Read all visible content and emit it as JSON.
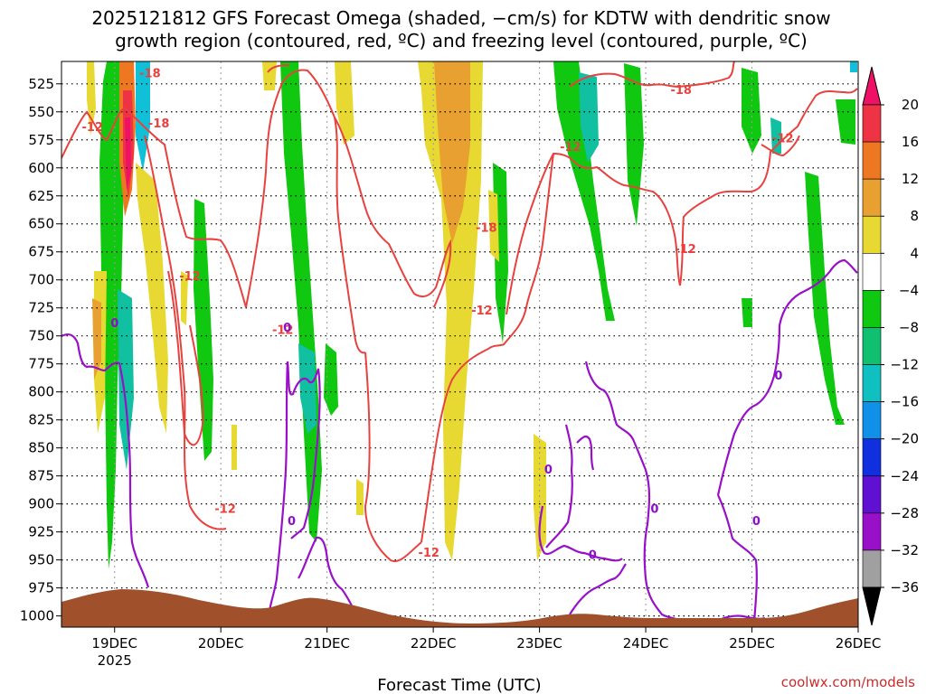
{
  "chart_data": {
    "type": "heatmap",
    "title_line1": "2025121812 GFS Forecast Omega (shaded, −cm/s) for KDTW with dendritic snow",
    "title_line2": "growth region (contoured, red, ºC) and freezing level (contoured, purple, ºC)",
    "xlabel": "Forecast Time (UTC)",
    "ylabel": "",
    "credit": "coolwx.com/models",
    "x_ticks": [
      "19DEC",
      "20DEC",
      "21DEC",
      "22DEC",
      "23DEC",
      "24DEC",
      "25DEC",
      "26DEC"
    ],
    "x_tick_hours": [
      12,
      36,
      60,
      84,
      108,
      132,
      156,
      180
    ],
    "x_year_label": "2025",
    "xlim_hours": [
      0,
      180
    ],
    "y_ticks": [
      525,
      550,
      575,
      600,
      625,
      650,
      675,
      700,
      725,
      750,
      775,
      800,
      825,
      850,
      875,
      900,
      925,
      950,
      975,
      1000
    ],
    "ylim_hpa": [
      1010,
      505
    ],
    "colorbar": {
      "labels": [
        "20",
        "16",
        "12",
        "8",
        "4",
        "−4",
        "−8",
        "−12",
        "−16",
        "−20",
        "−24",
        "−28",
        "−32",
        "−36"
      ],
      "colors": [
        "#ee1166",
        "#ee3344",
        "#ee7722",
        "#e8a030",
        "#e8d832",
        "#ffffff",
        "#10c810",
        "#10c070",
        "#10c0c0",
        "#1090e8",
        "#1030e0",
        "#6010d0",
        "#9810c8",
        "#a0a0a0"
      ],
      "top_arrow_color": "#ee1166",
      "bottom_arrow_color": "#000000"
    },
    "red_contour_labels": [
      {
        "text": "-18",
        "hour": 20,
        "hpa": 515
      },
      {
        "text": "-12",
        "hour": 7,
        "hpa": 563
      },
      {
        "text": "-18",
        "hour": 22,
        "hpa": 560
      },
      {
        "text": "-12",
        "hour": 29,
        "hpa": 696
      },
      {
        "text": "-12",
        "hour": 50,
        "hpa": 744
      },
      {
        "text": "-18",
        "hour": 96,
        "hpa": 653
      },
      {
        "text": "-12",
        "hour": 95,
        "hpa": 727
      },
      {
        "text": "-12",
        "hour": 37,
        "hpa": 904
      },
      {
        "text": "-12",
        "hour": 83,
        "hpa": 943
      },
      {
        "text": "-12",
        "hour": 115,
        "hpa": 581
      },
      {
        "text": "-18",
        "hour": 140,
        "hpa": 530
      },
      {
        "text": "-12",
        "hour": 141,
        "hpa": 672
      },
      {
        "text": "-12",
        "hour": 163,
        "hpa": 573
      }
    ],
    "purple_contour_labels": [
      {
        "text": "0",
        "hour": 12,
        "hpa": 738
      },
      {
        "text": "0",
        "hour": 51,
        "hpa": 742
      },
      {
        "text": "0",
        "hour": 52,
        "hpa": 915
      },
      {
        "text": "0",
        "hour": 110,
        "hpa": 869
      },
      {
        "text": "0",
        "hour": 120,
        "hpa": 945
      },
      {
        "text": "0",
        "hour": 134,
        "hpa": 904
      },
      {
        "text": "0",
        "hour": 157,
        "hpa": 915
      },
      {
        "text": "0",
        "hour": 162,
        "hpa": 785
      }
    ]
  }
}
